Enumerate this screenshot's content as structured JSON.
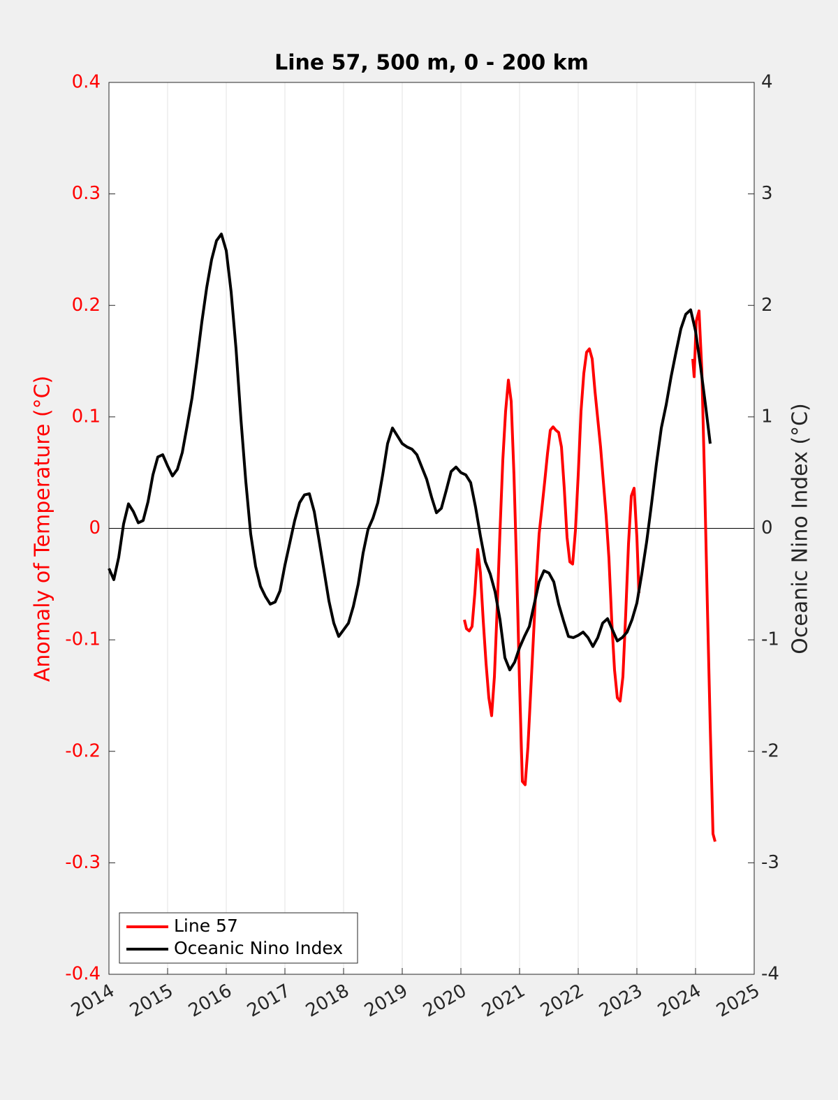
{
  "chart_data": {
    "type": "line",
    "title": "Line 57, 500 m, 0 - 200 km",
    "ylabel": "Anomaly of Temperature (°C)",
    "y2label": "Oceanic Nino Index (°C)",
    "xlim": [
      2014,
      2025
    ],
    "xticks": [
      2014,
      2015,
      2016,
      2017,
      2018,
      2019,
      2020,
      2021,
      2022,
      2023,
      2024,
      2025
    ],
    "ylim": [
      -0.4,
      0.4
    ],
    "yticks": [
      -0.4,
      -0.3,
      -0.2,
      -0.1,
      0,
      0.1,
      0.2,
      0.3,
      0.4
    ],
    "y2lim": [
      -4,
      4
    ],
    "y2ticks": [
      -4,
      -3,
      -2,
      -1,
      0,
      1,
      2,
      3,
      4
    ],
    "y_color": "#ff0000",
    "xgrid": true,
    "legend": "southwest",
    "series": [
      {
        "name": "Line 57",
        "color": "#ff0000",
        "axis": "y",
        "x": [
          2020.06,
          2020.095,
          2020.143,
          2020.19,
          2020.238,
          2020.286,
          2020.333,
          2020.381,
          2020.429,
          2020.476,
          2020.524,
          2020.571,
          2020.619,
          2020.667,
          2020.714,
          2020.762,
          2020.81,
          2020.857,
          2020.905,
          2020.952,
          2021.0,
          2021.048,
          2021.095,
          2021.143,
          2021.19,
          2021.238,
          2021.286,
          2021.333,
          2021.381,
          2021.429,
          2021.476,
          2021.524,
          2021.571,
          2021.619,
          2021.667,
          2021.714,
          2021.762,
          2021.81,
          2021.857,
          2021.905,
          2021.952,
          2022.0,
          2022.048,
          2022.095,
          2022.143,
          2022.19,
          2022.238,
          2022.286,
          2022.333,
          2022.381,
          2022.429,
          2022.476,
          2022.524,
          2022.571,
          2022.619,
          2022.667,
          2022.714,
          2022.762,
          2022.81,
          2022.857,
          2022.905,
          2022.952,
          2023.0,
          2023.036,
          2023.5,
          2023.952,
          2023.976,
          2024.012,
          2024.06,
          2024.107,
          2024.155,
          2024.202,
          2024.25,
          2024.298,
          2024.333
        ],
        "values": [
          -0.082,
          -0.09,
          -0.092,
          -0.088,
          -0.058,
          -0.019,
          -0.04,
          -0.083,
          -0.121,
          -0.152,
          -0.168,
          -0.133,
          -0.071,
          -0.002,
          0.061,
          0.105,
          0.133,
          0.114,
          0.048,
          -0.039,
          -0.14,
          -0.227,
          -0.23,
          -0.196,
          -0.146,
          -0.096,
          -0.046,
          -0.005,
          0.018,
          0.042,
          0.067,
          0.088,
          0.091,
          0.088,
          0.086,
          0.073,
          0.036,
          -0.008,
          -0.03,
          -0.032,
          -0.002,
          0.048,
          0.105,
          0.139,
          0.158,
          0.161,
          0.152,
          0.123,
          0.098,
          0.073,
          0.042,
          0.011,
          -0.027,
          -0.083,
          -0.127,
          -0.152,
          -0.155,
          -0.133,
          -0.077,
          -0.014,
          0.029,
          0.036,
          -0.008,
          -0.058,
          null,
          0.152,
          0.136,
          0.186,
          0.195,
          0.142,
          0.042,
          -0.071,
          -0.177,
          -0.274,
          -0.281
        ]
      },
      {
        "name": "Oceanic Nino Index",
        "color": "#000000",
        "axis": "y2",
        "x": [
          2014,
          2014.083,
          2014.167,
          2014.25,
          2014.333,
          2014.417,
          2014.5,
          2014.583,
          2014.667,
          2014.75,
          2014.833,
          2014.917,
          2015,
          2015.083,
          2015.167,
          2015.25,
          2015.333,
          2015.417,
          2015.5,
          2015.583,
          2015.667,
          2015.75,
          2015.833,
          2015.917,
          2016,
          2016.083,
          2016.167,
          2016.25,
          2016.333,
          2016.417,
          2016.5,
          2016.583,
          2016.667,
          2016.75,
          2016.833,
          2016.917,
          2017,
          2017.083,
          2017.167,
          2017.25,
          2017.333,
          2017.417,
          2017.5,
          2017.583,
          2017.667,
          2017.75,
          2017.833,
          2017.917,
          2018,
          2018.083,
          2018.167,
          2018.25,
          2018.333,
          2018.417,
          2018.5,
          2018.583,
          2018.667,
          2018.75,
          2018.833,
          2018.917,
          2019,
          2019.083,
          2019.167,
          2019.25,
          2019.333,
          2019.417,
          2019.5,
          2019.583,
          2019.667,
          2019.75,
          2019.833,
          2019.917,
          2020,
          2020.083,
          2020.167,
          2020.25,
          2020.333,
          2020.417,
          2020.5,
          2020.583,
          2020.667,
          2020.75,
          2020.833,
          2020.917,
          2021,
          2021.083,
          2021.167,
          2021.25,
          2021.333,
          2021.417,
          2021.5,
          2021.583,
          2021.667,
          2021.75,
          2021.833,
          2021.917,
          2022,
          2022.083,
          2022.167,
          2022.25,
          2022.333,
          2022.417,
          2022.5,
          2022.583,
          2022.667,
          2022.75,
          2022.833,
          2022.917,
          2023,
          2023.083,
          2023.167,
          2023.25,
          2023.333,
          2023.417,
          2023.5,
          2023.583,
          2023.667,
          2023.75,
          2023.833,
          2023.917,
          2024,
          2024.083,
          2024.167,
          2024.25
        ],
        "values": [
          -0.36,
          -0.46,
          -0.26,
          0.04,
          0.22,
          0.15,
          0.05,
          0.07,
          0.24,
          0.48,
          0.64,
          0.66,
          0.56,
          0.47,
          0.53,
          0.68,
          0.92,
          1.17,
          1.5,
          1.85,
          2.16,
          2.41,
          2.58,
          2.64,
          2.49,
          2.12,
          1.61,
          0.98,
          0.42,
          -0.05,
          -0.34,
          -0.52,
          -0.61,
          -0.68,
          -0.66,
          -0.56,
          -0.33,
          -0.13,
          0.07,
          0.23,
          0.3,
          0.31,
          0.15,
          -0.11,
          -0.38,
          -0.65,
          -0.85,
          -0.97,
          -0.91,
          -0.85,
          -0.7,
          -0.5,
          -0.22,
          -0.01,
          0.09,
          0.23,
          0.48,
          0.76,
          0.9,
          0.83,
          0.76,
          0.73,
          0.71,
          0.66,
          0.55,
          0.44,
          0.28,
          0.14,
          0.18,
          0.34,
          0.51,
          0.55,
          0.5,
          0.48,
          0.41,
          0.19,
          -0.07,
          -0.3,
          -0.41,
          -0.57,
          -0.82,
          -1.16,
          -1.27,
          -1.2,
          -1.07,
          -0.97,
          -0.88,
          -0.68,
          -0.48,
          -0.38,
          -0.4,
          -0.48,
          -0.68,
          -0.83,
          -0.97,
          -0.98,
          -0.96,
          -0.93,
          -0.98,
          -1.06,
          -0.98,
          -0.85,
          -0.81,
          -0.91,
          -1.01,
          -0.98,
          -0.93,
          -0.82,
          -0.67,
          -0.41,
          -0.12,
          0.22,
          0.58,
          0.9,
          1.11,
          1.36,
          1.58,
          1.79,
          1.92,
          1.96,
          1.77,
          1.46,
          1.12,
          0.76
        ]
      }
    ]
  }
}
